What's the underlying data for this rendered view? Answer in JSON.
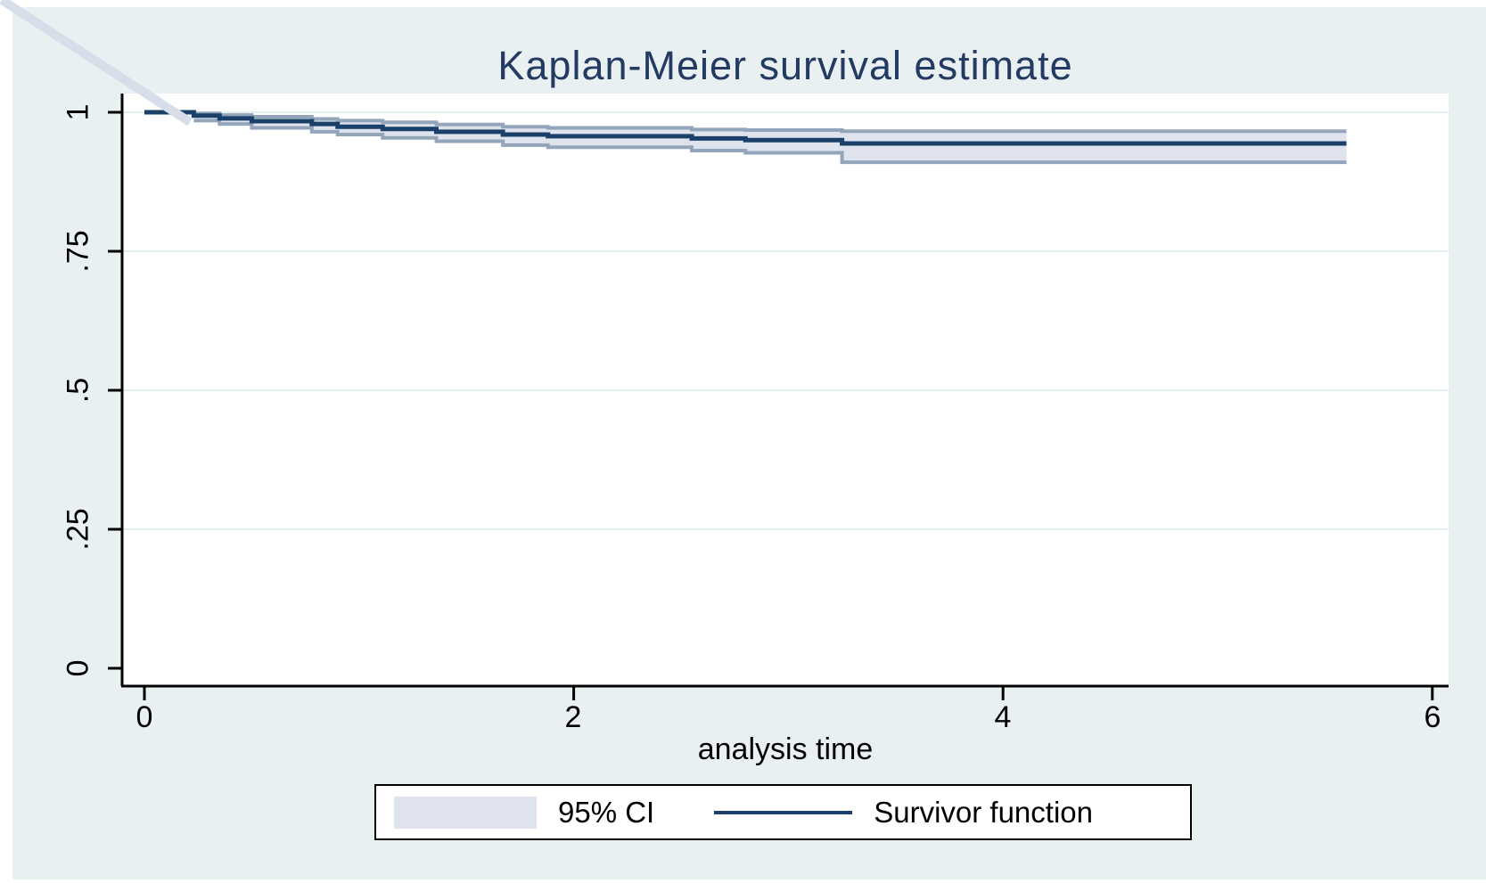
{
  "figure": {
    "background_color": "#e9f0f2",
    "plot_background_color": "#ffffff",
    "title_color": "#233a62",
    "axis_color": "#000000",
    "artifact_line_color": "#d8dee9"
  },
  "chart_data": {
    "type": "line",
    "subtype": "kaplan-meier-step",
    "title": "Kaplan-Meier survival estimate",
    "xlabel": "analysis time",
    "ylabel": "",
    "xlim": [
      0,
      6
    ],
    "ylim": [
      0,
      1
    ],
    "x_ticks": [
      0,
      2,
      4,
      6
    ],
    "x_tick_labels": [
      "0",
      "2",
      "4",
      "6"
    ],
    "y_ticks": [
      0,
      0.25,
      0.5,
      0.75,
      1
    ],
    "y_tick_labels": [
      "0",
      ".25",
      ".5",
      ".75",
      "1"
    ],
    "grid": {
      "y_values": [
        0.25,
        0.5,
        0.75,
        1
      ],
      "color": "#e2eef0",
      "on": true
    },
    "t_end": 5.6,
    "series": [
      {
        "name": "Survivor function",
        "type": "step",
        "color": "#1a4069",
        "points": [
          [
            0,
            1.0
          ],
          [
            0.23,
            0.994
          ],
          [
            0.35,
            0.989
          ],
          [
            0.5,
            0.984
          ],
          [
            0.78,
            0.979
          ],
          [
            0.9,
            0.974
          ],
          [
            1.11,
            0.97
          ],
          [
            1.36,
            0.965
          ],
          [
            1.67,
            0.96
          ],
          [
            1.88,
            0.957
          ],
          [
            2.55,
            0.953
          ],
          [
            2.8,
            0.95
          ],
          [
            3.25,
            0.944
          ]
        ]
      },
      {
        "name": "95% CI",
        "type": "band",
        "fill": "#dfe3ed",
        "edge_color": "#93a5ba",
        "upper": [
          [
            0.23,
            0.998
          ],
          [
            0.35,
            0.995
          ],
          [
            0.5,
            0.992
          ],
          [
            0.78,
            0.988
          ],
          [
            0.9,
            0.985
          ],
          [
            1.11,
            0.982
          ],
          [
            1.36,
            0.978
          ],
          [
            1.67,
            0.974
          ],
          [
            1.88,
            0.972
          ],
          [
            2.55,
            0.969
          ],
          [
            2.8,
            0.968
          ],
          [
            3.25,
            0.966
          ]
        ],
        "lower": [
          [
            0.23,
            0.985
          ],
          [
            0.35,
            0.979
          ],
          [
            0.5,
            0.972
          ],
          [
            0.78,
            0.965
          ],
          [
            0.9,
            0.96
          ],
          [
            1.11,
            0.954
          ],
          [
            1.36,
            0.948
          ],
          [
            1.67,
            0.941
          ],
          [
            1.88,
            0.937
          ],
          [
            2.55,
            0.931
          ],
          [
            2.8,
            0.927
          ],
          [
            3.25,
            0.91
          ]
        ]
      }
    ],
    "legend": {
      "position": "bottom",
      "entries": [
        "95% CI",
        "Survivor function"
      ]
    }
  }
}
